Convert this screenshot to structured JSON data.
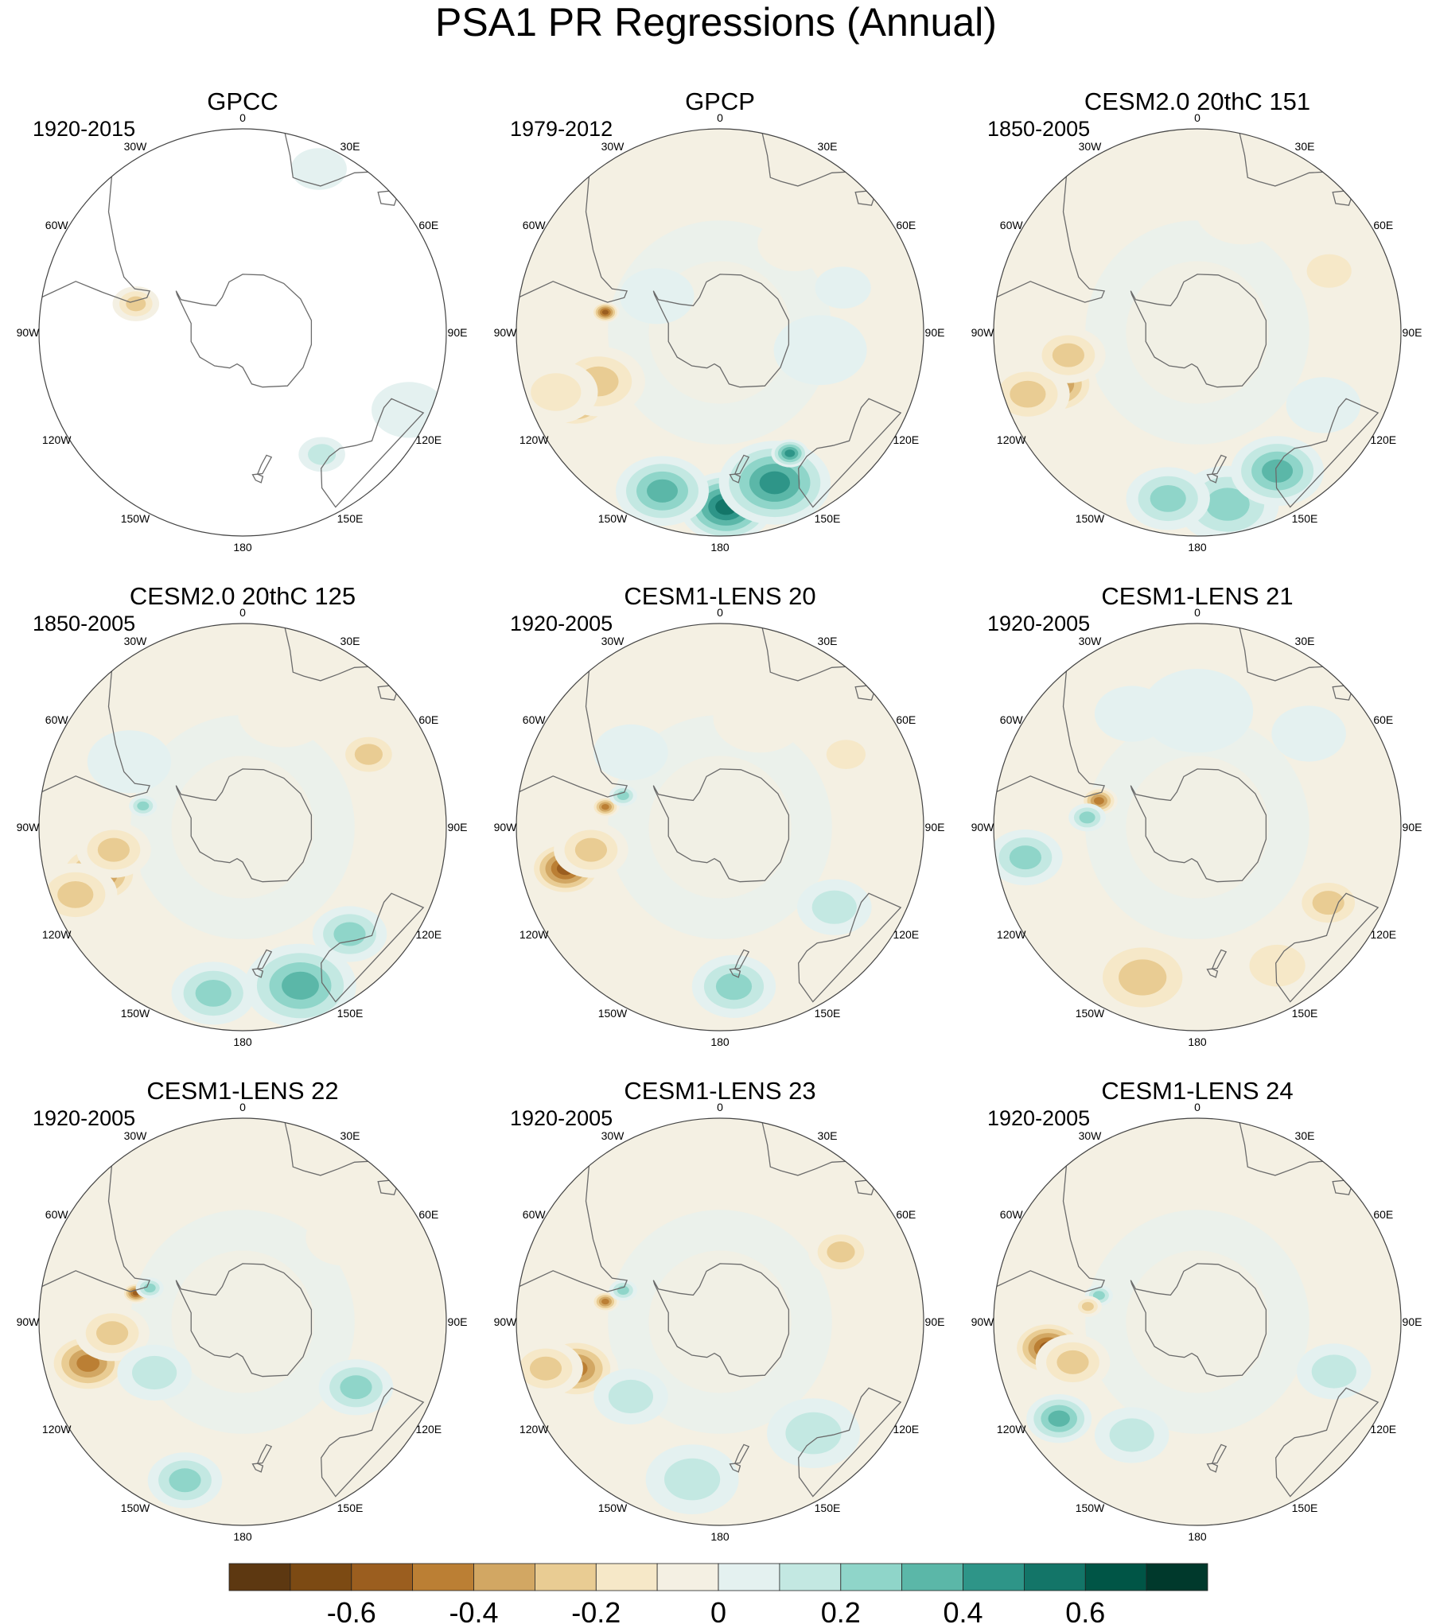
{
  "title": "PSA1 PR Regressions (Annual)",
  "longitude_labels": [
    "0",
    "30E",
    "60E",
    "90E",
    "120E",
    "150E",
    "180",
    "150W",
    "120W",
    "90W",
    "60W",
    "30W"
  ],
  "panels": [
    {
      "title": "GPCC",
      "period": "1920-2015",
      "ocean_data": false,
      "blobs": [
        {
          "lon": -75,
          "lat": -52,
          "v": -0.25,
          "r": 5
        },
        {
          "lon": 147,
          "lat": -40,
          "v": 0.2,
          "r": 5
        },
        {
          "lon": 115,
          "lat": -27,
          "v": 0.05,
          "r": 8
        },
        {
          "lon": 25,
          "lat": -28,
          "v": 0.1,
          "r": 6
        }
      ]
    },
    {
      "title": "GPCP",
      "period": "1979-2012",
      "ocean_data": true,
      "blobs": [
        {
          "lon": -115,
          "lat": -35,
          "v": -0.6,
          "r": 8
        },
        {
          "lon": -112,
          "lat": -45,
          "v": -0.35,
          "r": 10
        },
        {
          "lon": -110,
          "lat": -30,
          "v": -0.2,
          "r": 9
        },
        {
          "lon": -80,
          "lat": -50,
          "v": -0.55,
          "r": 3
        },
        {
          "lon": 178,
          "lat": -30,
          "v": 0.6,
          "r": 10
        },
        {
          "lon": 160,
          "lat": -35,
          "v": 0.45,
          "r": 12
        },
        {
          "lon": -160,
          "lat": -32,
          "v": 0.4,
          "r": 10
        },
        {
          "lon": 150,
          "lat": -42,
          "v": 0.5,
          "r": 4
        },
        {
          "lon": 40,
          "lat": -50,
          "v": -0.15,
          "r": 8
        },
        {
          "lon": 70,
          "lat": -45,
          "v": 0.15,
          "r": 6
        },
        {
          "lon": -30,
          "lat": -40,
          "v": -0.15,
          "r": 8
        },
        {
          "lon": -60,
          "lat": -65,
          "v": 0.15,
          "r": 8
        },
        {
          "lon": 100,
          "lat": -55,
          "v": 0.1,
          "r": 10
        }
      ]
    },
    {
      "title": "CESM2.0 20thC 151",
      "period": "1850-2005",
      "ocean_data": true,
      "blobs": [
        {
          "lon": -110,
          "lat": -38,
          "v": -0.5,
          "r": 9
        },
        {
          "lon": -110,
          "lat": -28,
          "v": -0.3,
          "r": 9
        },
        {
          "lon": -100,
          "lat": -45,
          "v": -0.3,
          "r": 8
        },
        {
          "lon": 170,
          "lat": -30,
          "v": 0.35,
          "r": 11
        },
        {
          "lon": 150,
          "lat": -35,
          "v": 0.4,
          "r": 10
        },
        {
          "lon": -170,
          "lat": -32,
          "v": 0.25,
          "r": 9
        },
        {
          "lon": 65,
          "lat": -40,
          "v": -0.2,
          "r": 8
        },
        {
          "lon": 20,
          "lat": -45,
          "v": -0.1,
          "r": 10
        },
        {
          "lon": 120,
          "lat": -40,
          "v": 0.15,
          "r": 8
        }
      ]
    },
    {
      "title": "CESM2.0 20thC 125",
      "period": "1850-2005",
      "ocean_data": true,
      "blobs": [
        {
          "lon": -108,
          "lat": -38,
          "v": -0.5,
          "r": 9
        },
        {
          "lon": -112,
          "lat": -28,
          "v": -0.3,
          "r": 9
        },
        {
          "lon": -100,
          "lat": -45,
          "v": -0.25,
          "r": 8
        },
        {
          "lon": -78,
          "lat": -55,
          "v": 0.35,
          "r": 3
        },
        {
          "lon": 160,
          "lat": -32,
          "v": 0.4,
          "r": 12
        },
        {
          "lon": -170,
          "lat": -32,
          "v": 0.35,
          "r": 9
        },
        {
          "lon": 135,
          "lat": -38,
          "v": 0.3,
          "r": 8
        },
        {
          "lon": 60,
          "lat": -40,
          "v": -0.25,
          "r": 7
        },
        {
          "lon": -60,
          "lat": -45,
          "v": 0.1,
          "r": 9
        },
        {
          "lon": 20,
          "lat": -48,
          "v": -0.1,
          "r": 10
        }
      ]
    },
    {
      "title": "CESM1-LENS 20",
      "period": "1920-2005",
      "ocean_data": true,
      "blobs": [
        {
          "lon": -105,
          "lat": -35,
          "v": -0.6,
          "r": 8
        },
        {
          "lon": -100,
          "lat": -45,
          "v": -0.35,
          "r": 8
        },
        {
          "lon": -80,
          "lat": -50,
          "v": -0.5,
          "r": 3
        },
        {
          "lon": -72,
          "lat": -55,
          "v": 0.3,
          "r": 3
        },
        {
          "lon": 175,
          "lat": -35,
          "v": 0.3,
          "r": 9
        },
        {
          "lon": 125,
          "lat": -42,
          "v": 0.2,
          "r": 8
        },
        {
          "lon": 60,
          "lat": -40,
          "v": -0.2,
          "r": 7
        },
        {
          "lon": -50,
          "lat": -50,
          "v": 0.15,
          "r": 8
        },
        {
          "lon": 20,
          "lat": -50,
          "v": -0.1,
          "r": 10
        }
      ]
    },
    {
      "title": "CESM1-LENS 21",
      "period": "1920-2005",
      "ocean_data": true,
      "blobs": [
        {
          "lon": -75,
          "lat": -55,
          "v": -0.5,
          "r": 4
        },
        {
          "lon": -85,
          "lat": -52,
          "v": 0.3,
          "r": 4
        },
        {
          "lon": -100,
          "lat": -30,
          "v": 0.3,
          "r": 8
        },
        {
          "lon": -160,
          "lat": -35,
          "v": -0.25,
          "r": 12
        },
        {
          "lon": 120,
          "lat": -38,
          "v": -0.3,
          "r": 8
        },
        {
          "lon": 150,
          "lat": -35,
          "v": -0.2,
          "r": 10
        },
        {
          "lon": 50,
          "lat": -40,
          "v": 0.15,
          "r": 8
        },
        {
          "lon": 0,
          "lat": -50,
          "v": 0.1,
          "r": 12
        },
        {
          "lon": -30,
          "lat": -45,
          "v": 0.15,
          "r": 8
        }
      ]
    },
    {
      "title": "CESM1-LENS 22",
      "period": "1920-2005",
      "ocean_data": true,
      "blobs": [
        {
          "lon": -105,
          "lat": -35,
          "v": -0.45,
          "r": 9
        },
        {
          "lon": -75,
          "lat": -52,
          "v": -0.6,
          "r": 3
        },
        {
          "lon": -70,
          "lat": -56,
          "v": 0.35,
          "r": 3
        },
        {
          "lon": -95,
          "lat": -45,
          "v": -0.3,
          "r": 8
        },
        {
          "lon": -160,
          "lat": -32,
          "v": 0.25,
          "r": 8
        },
        {
          "lon": 120,
          "lat": -45,
          "v": 0.25,
          "r": 8
        },
        {
          "lon": -120,
          "lat": -55,
          "v": 0.2,
          "r": 8
        },
        {
          "lon": 50,
          "lat": -45,
          "v": -0.15,
          "r": 8
        }
      ]
    },
    {
      "title": "CESM1-LENS 23",
      "period": "1920-2005",
      "ocean_data": true,
      "blobs": [
        {
          "lon": -108,
          "lat": -38,
          "v": -0.5,
          "r": 9
        },
        {
          "lon": -105,
          "lat": -28,
          "v": -0.35,
          "r": 8
        },
        {
          "lon": -80,
          "lat": -50,
          "v": -0.45,
          "r": 3
        },
        {
          "lon": -72,
          "lat": -55,
          "v": 0.3,
          "r": 3
        },
        {
          "lon": -130,
          "lat": -50,
          "v": 0.2,
          "r": 8
        },
        {
          "lon": 60,
          "lat": -42,
          "v": -0.25,
          "r": 7
        },
        {
          "lon": 140,
          "lat": -40,
          "v": 0.2,
          "r": 10
        },
        {
          "lon": -170,
          "lat": -35,
          "v": 0.2,
          "r": 10
        }
      ]
    },
    {
      "title": "CESM1-LENS 24",
      "period": "1920-2005",
      "ocean_data": true,
      "blobs": [
        {
          "lon": -100,
          "lat": -38,
          "v": -0.6,
          "r": 8
        },
        {
          "lon": -108,
          "lat": -45,
          "v": -0.35,
          "r": 8
        },
        {
          "lon": -125,
          "lat": -32,
          "v": 0.4,
          "r": 7
        },
        {
          "lon": -75,
          "lat": -55,
          "v": 0.35,
          "r": 3
        },
        {
          "lon": -82,
          "lat": -52,
          "v": -0.3,
          "r": 3
        },
        {
          "lon": -150,
          "lat": -45,
          "v": 0.2,
          "r": 8
        },
        {
          "lon": 110,
          "lat": -40,
          "v": 0.2,
          "r": 8
        },
        {
          "lon": 60,
          "lat": -40,
          "v": -0.15,
          "r": 7
        }
      ]
    }
  ],
  "colorbar": {
    "colors": [
      "#5d3811",
      "#7c4a13",
      "#9b5e1f",
      "#bb7f34",
      "#d2a763",
      "#e9cc93",
      "#f6e8c8",
      "#f4f0e3",
      "#e4f1f0",
      "#c3e8e2",
      "#8fd5c9",
      "#5bb7a8",
      "#2e9588",
      "#137568",
      "#005546",
      "#00392c"
    ],
    "tick_labels": [
      "-0.6",
      "-0.4",
      "-0.2",
      "0",
      "0.2",
      "0.4",
      "0.6"
    ],
    "tick_values": [
      -0.6,
      -0.4,
      -0.2,
      0,
      0.2,
      0.4,
      0.6
    ]
  }
}
